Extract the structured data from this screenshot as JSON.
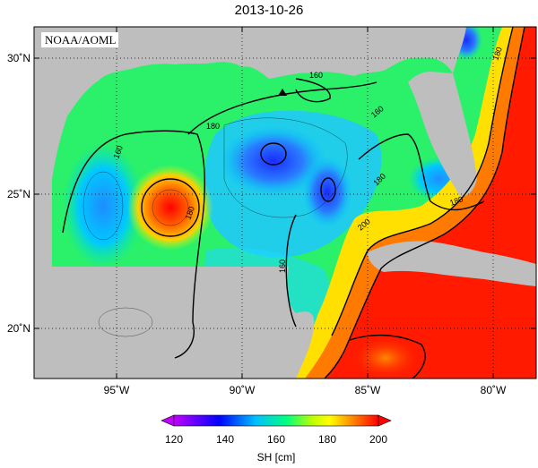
{
  "title": "2013-10-26",
  "source_label": "NOAA/AOML",
  "lat_ticks": [
    {
      "value": 30,
      "label": "30˚N"
    },
    {
      "value": 25,
      "label": "25˚N"
    },
    {
      "value": 20,
      "label": "20˚N"
    }
  ],
  "lon_ticks": [
    {
      "value": -95,
      "label": "95˚W"
    },
    {
      "value": -90,
      "label": "90˚W"
    },
    {
      "value": -85,
      "label": "85˚W"
    },
    {
      "value": -80,
      "label": "80˚W"
    }
  ],
  "contour_labels": [
    "160",
    "180",
    "200"
  ],
  "colorbar": {
    "label": "SH [cm]",
    "ticks": [
      "120",
      "140",
      "160",
      "180",
      "200"
    ],
    "min": 120,
    "max": 200,
    "colors": [
      "#c000ff",
      "#0000ff",
      "#00bfff",
      "#00ff80",
      "#c0ff00",
      "#ffff00",
      "#ff8000",
      "#ff0000"
    ]
  },
  "colors": {
    "land": "#bebebe",
    "high": "#ff1a00",
    "low": "#1e50ff"
  }
}
